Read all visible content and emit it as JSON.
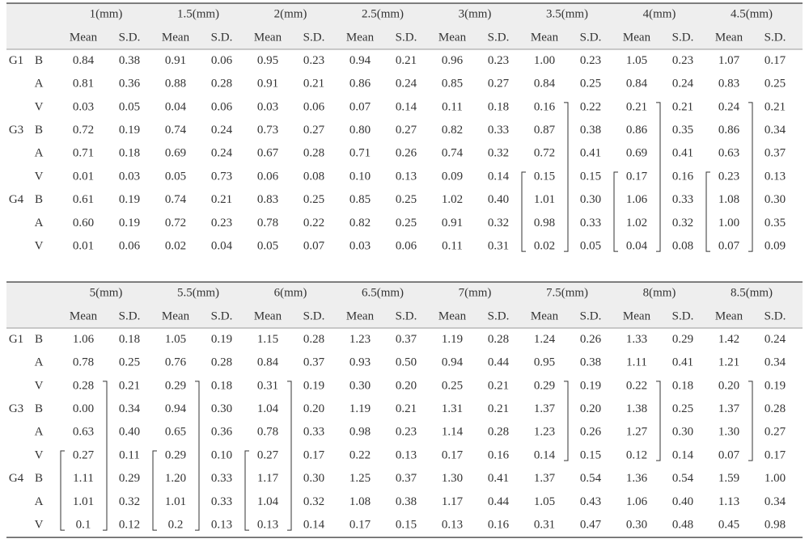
{
  "tables": [
    {
      "sizes": [
        "1(mm)",
        "1.5(mm)",
        "2(mm)",
        "2.5(mm)",
        "3(mm)",
        "3.5(mm)",
        "4(mm)",
        "4.5(mm)"
      ],
      "stats": [
        "Mean",
        "S.D."
      ],
      "rows": [
        {
          "group": "G1",
          "label": "B",
          "cells": [
            "0.84",
            "0.38",
            "0.91",
            "0.06",
            "0.95",
            "0.23",
            "0.94",
            "0.21",
            "0.96",
            "0.23",
            "1.00",
            "0.23",
            "1.05",
            "0.23",
            "1.07",
            "0.17"
          ]
        },
        {
          "label": "A",
          "cells": [
            "0.81",
            "0.36",
            "0.88",
            "0.28",
            "0.91",
            "0.21",
            "0.86",
            "0.24",
            "0.85",
            "0.27",
            "0.84",
            "0.25",
            "0.84",
            "0.24",
            "0.83",
            "0.25"
          ]
        },
        {
          "label": "V",
          "cells": [
            "0.03",
            "0.05",
            "0.04",
            "0.06",
            "0.03",
            "0.06",
            "0.07",
            "0.14",
            "0.11",
            "0.18",
            "0.16",
            "0.22",
            "0.21",
            "0.21",
            "0.24",
            "0.21"
          ]
        },
        {
          "group": "G3",
          "label": "B",
          "cells": [
            "0.72",
            "0.19",
            "0.74",
            "0.24",
            "0.73",
            "0.27",
            "0.80",
            "0.27",
            "0.82",
            "0.33",
            "0.87",
            "0.38",
            "0.86",
            "0.35",
            "0.86",
            "0.34"
          ]
        },
        {
          "label": "A",
          "cells": [
            "0.71",
            "0.18",
            "0.69",
            "0.24",
            "0.67",
            "0.28",
            "0.71",
            "0.26",
            "0.74",
            "0.32",
            "0.72",
            "0.41",
            "0.69",
            "0.41",
            "0.63",
            "0.37"
          ]
        },
        {
          "label": "V",
          "cells": [
            "0.01",
            "0.03",
            "0.05",
            "0.73",
            "0.06",
            "0.08",
            "0.10",
            "0.13",
            "0.09",
            "0.14",
            "0.15",
            "0.15",
            "0.17",
            "0.16",
            "0.23",
            "0.13"
          ]
        },
        {
          "group": "G4",
          "label": "B",
          "cells": [
            "0.61",
            "0.19",
            "0.74",
            "0.21",
            "0.83",
            "0.25",
            "0.85",
            "0.25",
            "1.02",
            "0.40",
            "1.01",
            "0.30",
            "1.06",
            "0.33",
            "1.08",
            "0.30"
          ]
        },
        {
          "label": "A",
          "cells": [
            "0.60",
            "0.19",
            "0.72",
            "0.23",
            "0.78",
            "0.22",
            "0.82",
            "0.25",
            "0.91",
            "0.32",
            "0.98",
            "0.33",
            "1.02",
            "0.32",
            "1.00",
            "0.35"
          ]
        },
        {
          "label": "V",
          "cells": [
            "0.01",
            "0.06",
            "0.02",
            "0.04",
            "0.05",
            "0.07",
            "0.03",
            "0.06",
            "0.11",
            "0.31",
            "0.02",
            "0.05",
            "0.04",
            "0.08",
            "0.07",
            "0.09"
          ]
        }
      ]
    },
    {
      "sizes": [
        "5(mm)",
        "5.5(mm)",
        "6(mm)",
        "6.5(mm)",
        "7(mm)",
        "7.5(mm)",
        "8(mm)",
        "8.5(mm)"
      ],
      "stats": [
        "Mean",
        "S.D."
      ],
      "rows": [
        {
          "group": "G1",
          "label": "B",
          "cells": [
            "1.06",
            "0.18",
            "1.05",
            "0.19",
            "1.15",
            "0.28",
            "1.23",
            "0.37",
            "1.19",
            "0.28",
            "1.24",
            "0.26",
            "1.33",
            "0.29",
            "1.42",
            "0.24"
          ]
        },
        {
          "label": "A",
          "cells": [
            "0.78",
            "0.25",
            "0.76",
            "0.28",
            "0.84",
            "0.37",
            "0.93",
            "0.50",
            "0.94",
            "0.44",
            "0.95",
            "0.38",
            "1.11",
            "0.41",
            "1.21",
            "0.34"
          ]
        },
        {
          "label": "V",
          "cells": [
            "0.28",
            "0.21",
            "0.29",
            "0.18",
            "0.31",
            "0.19",
            "0.30",
            "0.20",
            "0.25",
            "0.21",
            "0.29",
            "0.19",
            "0.22",
            "0.18",
            "0.20",
            "0.19"
          ]
        },
        {
          "group": "G3",
          "label": "B",
          "cells": [
            "0.00",
            "0.34",
            "0.94",
            "0.30",
            "1.04",
            "0.20",
            "1.19",
            "0.21",
            "1.31",
            "0.21",
            "1.37",
            "0.20",
            "1.38",
            "0.25",
            "1.37",
            "0.28"
          ]
        },
        {
          "label": "A",
          "cells": [
            "0.63",
            "0.40",
            "0.65",
            "0.36",
            "0.78",
            "0.33",
            "0.98",
            "0.23",
            "1.14",
            "0.28",
            "1.23",
            "0.26",
            "1.27",
            "0.30",
            "1.30",
            "0.27"
          ]
        },
        {
          "label": "V",
          "cells": [
            "0.27",
            "0.11",
            "0.29",
            "0.10",
            "0.27",
            "0.17",
            "0.22",
            "0.13",
            "0.17",
            "0.16",
            "0.14",
            "0.15",
            "0.12",
            "0.14",
            "0.07",
            "0.17"
          ]
        },
        {
          "group": "G4",
          "label": "B",
          "cells": [
            "1.11",
            "0.29",
            "1.20",
            "0.33",
            "1.17",
            "0.30",
            "1.25",
            "0.37",
            "1.30",
            "0.41",
            "1.37",
            "0.54",
            "1.36",
            "0.54",
            "1.59",
            "1.00"
          ]
        },
        {
          "label": "A",
          "cells": [
            "1.01",
            "0.32",
            "1.01",
            "0.33",
            "1.04",
            "0.32",
            "1.08",
            "0.38",
            "1.17",
            "0.44",
            "1.05",
            "0.43",
            "1.06",
            "0.40",
            "1.13",
            "0.34"
          ]
        },
        {
          "label": "V",
          "cells": [
            "0.1",
            "0.12",
            "0.2",
            "0.13",
            "0.13",
            "0.14",
            "0.17",
            "0.15",
            "0.13",
            "0.16",
            "0.31",
            "0.47",
            "0.30",
            "0.48",
            "0.45",
            "0.98"
          ]
        }
      ]
    }
  ]
}
